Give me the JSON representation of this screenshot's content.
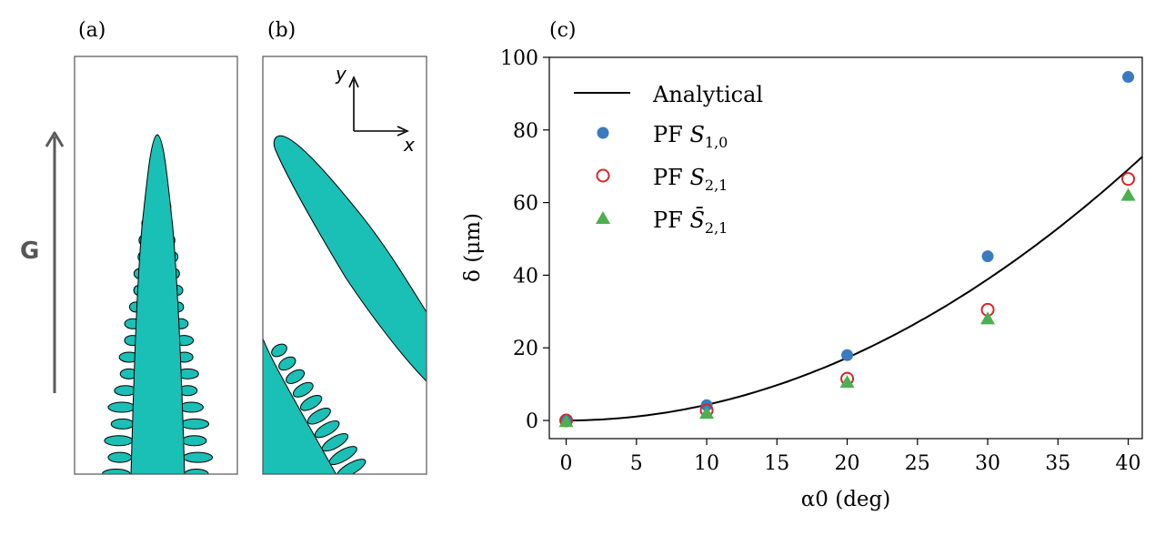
{
  "panels": {
    "a": {
      "label": "(a)"
    },
    "b": {
      "label": "(b)",
      "axis_y": "y",
      "axis_x": "x"
    },
    "c": {
      "label": "(c)"
    }
  },
  "gradient": {
    "label": "G"
  },
  "colors": {
    "dendrite": "#1abfb5",
    "analytical": "#000000",
    "pf_s10": "#3a7abf",
    "pf_s21": "#d62728",
    "pf_s21_bar": "#4caf50",
    "arrow_gray": "#5a5a5a"
  },
  "chart_data": {
    "type": "scatter",
    "xlabel": "α0 (deg)",
    "ylabel": "δ (μm)",
    "xlim": [
      -1.2,
      41
    ],
    "ylim": [
      -5,
      100
    ],
    "xticks": [
      0,
      5,
      10,
      15,
      20,
      25,
      30,
      35,
      40
    ],
    "yticks": [
      0,
      20,
      40,
      60,
      80,
      100
    ],
    "legend_position": "top-left",
    "series": [
      {
        "name": "Analytical",
        "kind": "line",
        "curve": "quadratic",
        "coef": 0.0432,
        "x_range": [
          0,
          41
        ]
      },
      {
        "name": "PF S1,0",
        "kind": "marker",
        "marker": "filled-circle",
        "x": [
          0,
          10,
          20,
          30,
          40
        ],
        "values": [
          0,
          4.2,
          18,
          45.2,
          94.6
        ]
      },
      {
        "name": "PF S2,1",
        "kind": "marker",
        "marker": "open-circle",
        "x": [
          0,
          10,
          20,
          30,
          40
        ],
        "values": [
          0,
          2.8,
          11.5,
          30.5,
          66.5
        ]
      },
      {
        "name": "PF S̄2,1",
        "kind": "marker",
        "marker": "triangle",
        "x": [
          0,
          10,
          20,
          30,
          40
        ],
        "values": [
          -0.3,
          2.0,
          10.5,
          28.0,
          62.0
        ]
      }
    ],
    "legend": [
      {
        "label": "Analytical",
        "prefix": "",
        "sym": "",
        "sub": ""
      },
      {
        "label": "PF S1,0",
        "prefix": "PF ",
        "sym": "S",
        "sub": "1,0"
      },
      {
        "label": "PF S2,1",
        "prefix": "PF ",
        "sym": "S",
        "sub": "2,1"
      },
      {
        "label": "PF S̄2,1",
        "prefix": "PF ",
        "sym": "S̄",
        "sub": "2,1"
      }
    ]
  }
}
